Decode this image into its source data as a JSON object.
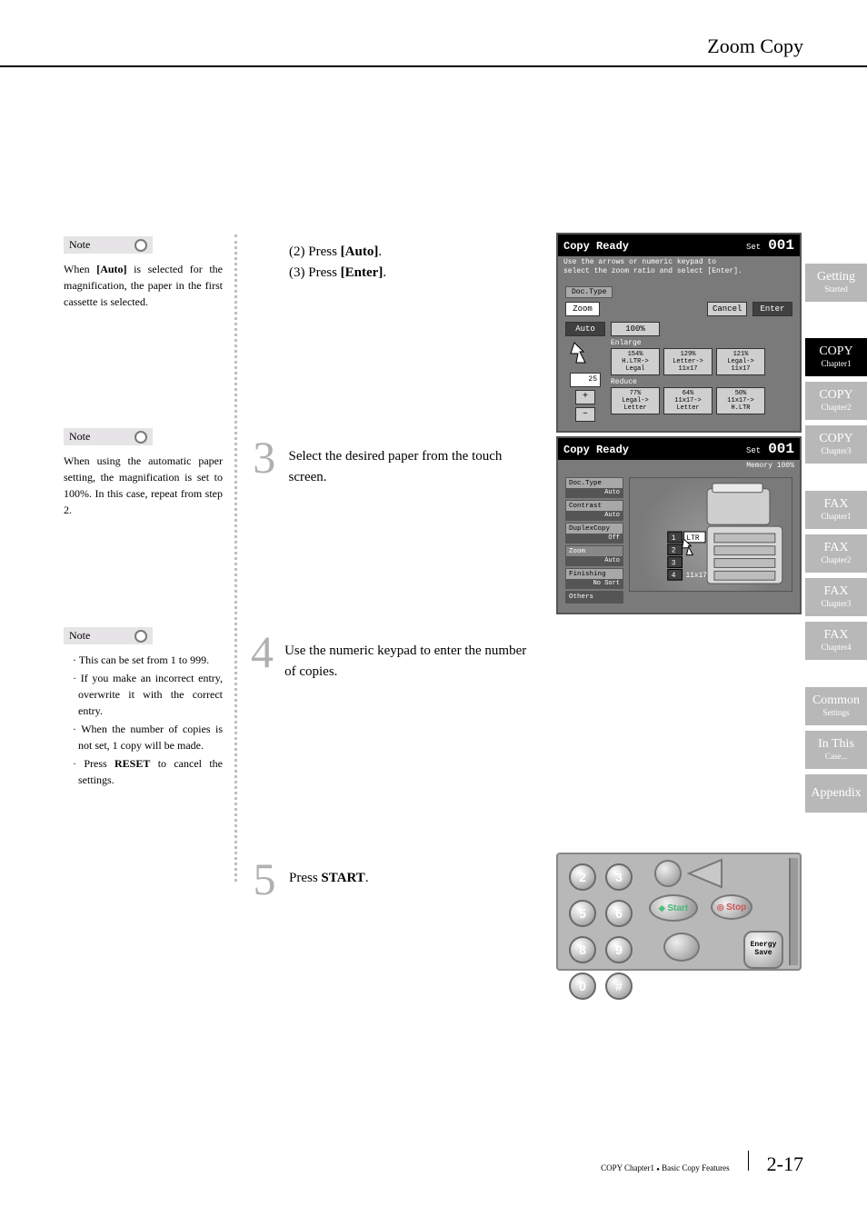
{
  "header": {
    "title": "Zoom Copy"
  },
  "sidetabs": [
    {
      "line1": "Getting",
      "line2": "Started",
      "active": false
    },
    {
      "line1": "COPY",
      "line2": "Chapter1",
      "active": true
    },
    {
      "line1": "COPY",
      "line2": "Chapter2",
      "active": false
    },
    {
      "line1": "COPY",
      "line2": "Chapter3",
      "active": false
    },
    {
      "line1": "FAX",
      "line2": "Chapter1",
      "active": false
    },
    {
      "line1": "FAX",
      "line2": "Chapter2",
      "active": false
    },
    {
      "line1": "FAX",
      "line2": "Chapter3",
      "active": false
    },
    {
      "line1": "FAX",
      "line2": "Chapter4",
      "active": false
    },
    {
      "line1": "Common",
      "line2": "Settings",
      "active": false
    },
    {
      "line1": "In This",
      "line2": "Case...",
      "active": false
    },
    {
      "line1": "Appendix",
      "line2": "",
      "active": false
    }
  ],
  "notes": {
    "label": "Note",
    "n1": "When [Auto] is selected for the magnification, the paper in the first cassette is selected.",
    "n1_bold": "[Auto]",
    "n2": "When using the automatic paper setting, the magnification is set to 100%. In this case, repeat from step 2.",
    "n3_items": [
      "This can be set from 1 to 999.",
      "If you make an incorrect entry, overwrite it with the correct entry.",
      "When the number of copies is not set, 1 copy will be made.",
      "Press RESET to cancel the settings."
    ],
    "n3_reset": "RESET"
  },
  "steps": {
    "s2a_prefix": "(2) Press ",
    "s2a_bold": "[Auto]",
    "s2a_suffix": ".",
    "s2b_prefix": "(3) Press ",
    "s2b_bold": "[Enter]",
    "s2b_suffix": ".",
    "s3_num": "3",
    "s3_text": "Select the desired paper from the touch screen.",
    "s4_num": "4",
    "s4_text": "Use the numeric keypad to enter the number of copies.",
    "s5_num": "5",
    "s5_prefix": "Press ",
    "s5_sc": "START",
    "s5_suffix": "."
  },
  "lcd_common": {
    "title": "Copy Ready",
    "set": "Set",
    "count": "001"
  },
  "lcd1": {
    "sub1": "Use the arrows or numeric keypad to",
    "sub2": "select the zoom ratio and select [Enter].",
    "doctype": "Doc.Type",
    "zoom": "Zoom",
    "cancel": "Cancel",
    "enter": "Enter",
    "auto": "Auto",
    "hundred": "100%",
    "enlarge": "Enlarge",
    "e_cells": [
      [
        "154%",
        "H.LTR->",
        "Legal"
      ],
      [
        "129%",
        "Letter->",
        "11x17"
      ],
      [
        "121%",
        "Legal->",
        "11x17"
      ]
    ],
    "reduce": "Reduce",
    "r_cells": [
      [
        "77%",
        "Legal->",
        "Letter"
      ],
      [
        "64%",
        "11x17->",
        "Letter"
      ],
      [
        "50%",
        "11x17->",
        "H.LTR"
      ]
    ],
    "disp": "25",
    "plus": "+",
    "minus": "–"
  },
  "lcd2": {
    "memory": "Memory   100%",
    "tabs": [
      {
        "k": "Doc.Type",
        "v": "Auto"
      },
      {
        "k": "Contrast",
        "v": "Auto"
      },
      {
        "k": "DuplexCopy",
        "v": "Off"
      },
      {
        "k": "Zoom",
        "v": "Auto"
      },
      {
        "k": "Finishing",
        "v": "No Sort"
      }
    ],
    "others": "Others",
    "slot1": "1",
    "slot2": "2",
    "slot3": "3",
    "slot4": "4",
    "paper": "LTR",
    "p11x17": "11x17"
  },
  "panel": {
    "keys": [
      "2",
      "3",
      "5",
      "6",
      "8",
      "9",
      "0",
      "#"
    ],
    "start": "Start",
    "stop": "Stop",
    "energy1": "Energy",
    "energy2": "Save"
  },
  "footer": {
    "left": "COPY Chapter1",
    "bullet": "●",
    "right": "Basic Copy Features",
    "page": "2-17"
  },
  "colors": {
    "grey_tab": "#b8b8b8",
    "lcd_bg": "#7a7a7a",
    "bignum": "#b0b0b0"
  }
}
